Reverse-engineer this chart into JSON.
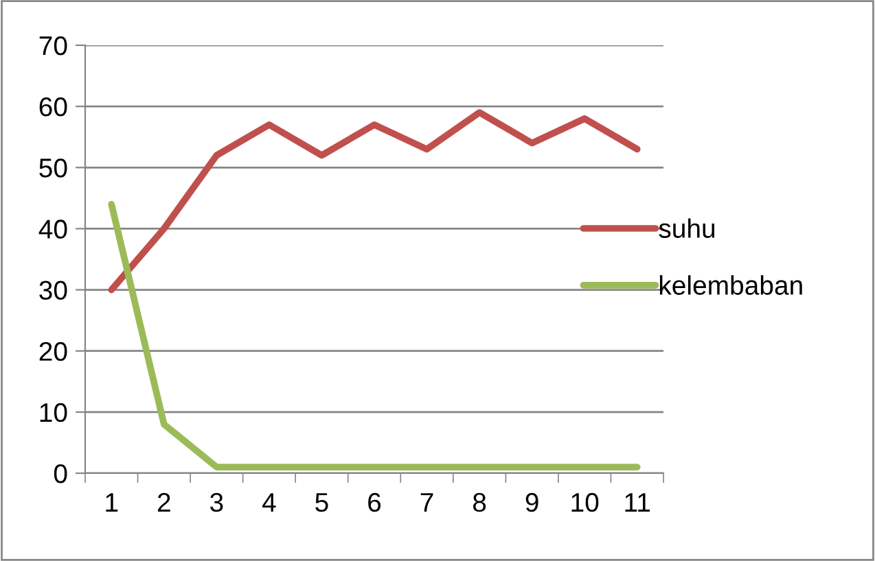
{
  "chart_data": {
    "type": "line",
    "categories": [
      "1",
      "2",
      "3",
      "4",
      "5",
      "6",
      "7",
      "8",
      "9",
      "10",
      "11"
    ],
    "series": [
      {
        "name": "suhu",
        "color": "#c0504d",
        "values": [
          30,
          40,
          52,
          57,
          52,
          57,
          53,
          59,
          54,
          58,
          53
        ]
      },
      {
        "name": "kelembaban",
        "color": "#9bbb59",
        "values": [
          44,
          8,
          1,
          1,
          1,
          1,
          1,
          1,
          1,
          1,
          1
        ]
      }
    ],
    "ylim": [
      0,
      70
    ],
    "yticks": [
      0,
      10,
      20,
      30,
      40,
      50,
      60,
      70
    ],
    "grid": "y",
    "legend": "right",
    "marker": "none",
    "line_style": "solid"
  }
}
